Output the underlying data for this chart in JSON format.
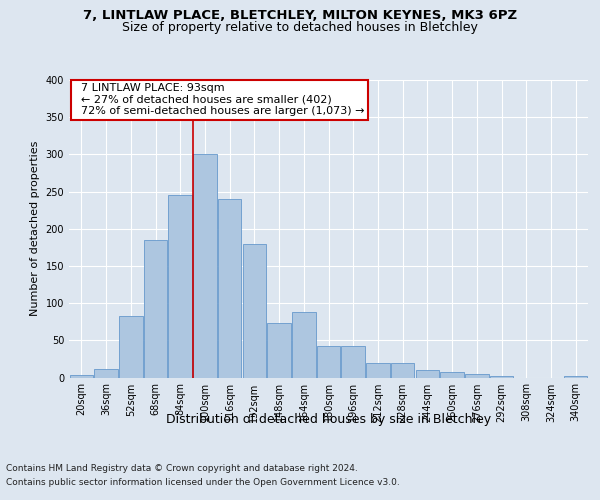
{
  "title_line1": "7, LINTLAW PLACE, BLETCHLEY, MILTON KEYNES, MK3 6PZ",
  "title_line2": "Size of property relative to detached houses in Bletchley",
  "xlabel": "Distribution of detached houses by size in Bletchley",
  "ylabel": "Number of detached properties",
  "categories": [
    "20sqm",
    "36sqm",
    "52sqm",
    "68sqm",
    "84sqm",
    "100sqm",
    "116sqm",
    "132sqm",
    "148sqm",
    "164sqm",
    "180sqm",
    "196sqm",
    "212sqm",
    "228sqm",
    "244sqm",
    "260sqm",
    "276sqm",
    "292sqm",
    "308sqm",
    "324sqm",
    "340sqm"
  ],
  "bar_heights": [
    3,
    12,
    83,
    185,
    245,
    300,
    240,
    180,
    73,
    88,
    43,
    43,
    20,
    20,
    10,
    8,
    5,
    2,
    0,
    0,
    2
  ],
  "bar_color": "#adc6e0",
  "bar_edge_color": "#6699cc",
  "vline_x": 4.5,
  "vline_color": "#cc0000",
  "annotation_text": "  7 LINTLAW PLACE: 93sqm\n  ← 27% of detached houses are smaller (402)\n  72% of semi-detached houses are larger (1,073) →",
  "annotation_box_color": "#ffffff",
  "annotation_box_edge": "#cc0000",
  "ylim": [
    0,
    400
  ],
  "yticks": [
    0,
    50,
    100,
    150,
    200,
    250,
    300,
    350,
    400
  ],
  "footer_line1": "Contains HM Land Registry data © Crown copyright and database right 2024.",
  "footer_line2": "Contains public sector information licensed under the Open Government Licence v3.0.",
  "bg_color": "#dde6f0",
  "plot_bg_color": "#dde6f0",
  "grid_color": "#ffffff",
  "title_fontsize": 9.5,
  "subtitle_fontsize": 9,
  "tick_fontsize": 7,
  "ylabel_fontsize": 8,
  "xlabel_fontsize": 9,
  "footer_fontsize": 6.5,
  "annotation_fontsize": 8
}
